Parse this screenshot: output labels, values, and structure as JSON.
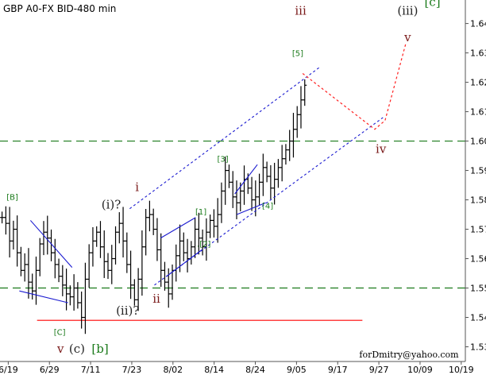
{
  "chart_data": {
    "type": "ohlc",
    "title": "GBP A0-FX BID-480 min",
    "watermark": "forDmitry@yahoo.com",
    "y_ticks": [
      1.53,
      1.54,
      1.55,
      1.56,
      1.57,
      1.58,
      1.59,
      1.6,
      1.61,
      1.62,
      1.63,
      1.64
    ],
    "ylim": [
      1.525,
      1.648
    ],
    "x_ticks": [
      "6/19",
      "6/29",
      "7/11",
      "7/23",
      "8/02",
      "8/14",
      "8/24",
      "9/05",
      "9/17",
      "9/27",
      "10/09",
      "10/19"
    ],
    "xlim": [
      0,
      11.3
    ],
    "colors": {
      "bars": "#000000",
      "wave_labels": "#222222",
      "sub_wave_labels": "#1a7a1a",
      "main_labels": "#7a1a1a",
      "channel": "#1a1ad0",
      "projection": "#ff2020",
      "levels": "#1a7a1a",
      "support": "#ff0000",
      "axis": "#555555"
    },
    "price_series": [
      1.574,
      1.572,
      1.566,
      1.57,
      1.562,
      1.556,
      1.558,
      1.552,
      1.549,
      1.556,
      1.565,
      1.569,
      1.567,
      1.562,
      1.558,
      1.554,
      1.551,
      1.548,
      1.547,
      1.55,
      1.545,
      1.54,
      1.553,
      1.562,
      1.566,
      1.569,
      1.564,
      1.559,
      1.556,
      1.56,
      1.569,
      1.572,
      1.566,
      1.558,
      1.551,
      1.546,
      1.553,
      1.564,
      1.574,
      1.575,
      1.57,
      1.563,
      1.556,
      1.552,
      1.548,
      1.556,
      1.561,
      1.566,
      1.562,
      1.56,
      1.564,
      1.57,
      1.567,
      1.564,
      1.569,
      1.573,
      1.571,
      1.575,
      1.583,
      1.59,
      1.586,
      1.581,
      1.579,
      1.583,
      1.587,
      1.584,
      1.58,
      1.581,
      1.586,
      1.591,
      1.588,
      1.584,
      1.587,
      1.591,
      1.594,
      1.597,
      1.6,
      1.604,
      1.609,
      1.614,
      1.619
    ],
    "horizontal_levels": [
      {
        "y": 1.6,
        "style": "dashed",
        "color": "levels"
      },
      {
        "y": 1.55,
        "style": "dashed",
        "color": "levels"
      },
      {
        "y": 1.539,
        "x_from": 0.9,
        "x_to": 8.8,
        "style": "solid",
        "color": "support"
      }
    ],
    "trend_lines": [
      {
        "points": [
          [
            0.74,
            1.573
          ],
          [
            1.75,
            1.557
          ]
        ],
        "style": "solid",
        "color": "channel"
      },
      {
        "points": [
          [
            0.47,
            1.549
          ],
          [
            1.65,
            1.545
          ]
        ],
        "style": "solid",
        "color": "channel"
      },
      {
        "points": [
          [
            3.9,
            1.567
          ],
          [
            4.75,
            1.574
          ]
        ],
        "style": "solid",
        "color": "channel"
      },
      {
        "points": [
          [
            4.05,
            1.554
          ],
          [
            4.9,
            1.563
          ]
        ],
        "style": "solid",
        "color": "channel"
      },
      {
        "points": [
          [
            5.7,
            1.582
          ],
          [
            6.25,
            1.592
          ]
        ],
        "style": "solid",
        "color": "channel"
      },
      {
        "points": [
          [
            5.75,
            1.575
          ],
          [
            6.45,
            1.579
          ]
        ],
        "style": "solid",
        "color": "channel"
      },
      {
        "points": [
          [
            3.15,
            1.577
          ],
          [
            7.75,
            1.625
          ]
        ],
        "style": "dashed",
        "color": "channel"
      },
      {
        "points": [
          [
            3.75,
            1.551
          ],
          [
            9.3,
            1.608
          ]
        ],
        "style": "dashed",
        "color": "channel"
      }
    ],
    "projection": {
      "points": [
        [
          7.35,
          1.623
        ],
        [
          9.1,
          1.604
        ],
        [
          9.35,
          1.607
        ],
        [
          9.85,
          1.633
        ]
      ],
      "color": "projection"
    },
    "wave_labels": [
      {
        "text": "[B]",
        "x": 0.3,
        "y": 1.58,
        "color": "sub_wave_labels",
        "size": "small"
      },
      {
        "text": "(i)?",
        "x": 2.7,
        "y": 1.577,
        "color": "wave_labels",
        "size": "large"
      },
      {
        "text": "i",
        "x": 3.33,
        "y": 1.583,
        "color": "main_labels",
        "size": "large"
      },
      {
        "text": "[1]",
        "x": 4.88,
        "y": 1.575,
        "color": "sub_wave_labels",
        "size": "small"
      },
      {
        "text": "[3]",
        "x": 5.41,
        "y": 1.593,
        "color": "sub_wave_labels",
        "size": "small"
      },
      {
        "text": "iii",
        "x": 7.3,
        "y": 1.643,
        "color": "main_labels",
        "size": "large"
      },
      {
        "text": "[5]",
        "x": 7.23,
        "y": 1.629,
        "color": "sub_wave_labels",
        "size": "small"
      },
      {
        "text": "(iii)",
        "x": 9.9,
        "y": 1.643,
        "color": "wave_labels",
        "size": "large"
      },
      {
        "text": "v",
        "x": 9.9,
        "y": 1.634,
        "color": "main_labels",
        "size": "large"
      },
      {
        "text": "[c]",
        "x": 10.5,
        "y": 1.646,
        "color": "sub_wave_labels",
        "size": "large"
      },
      {
        "text": ".[2]",
        "x": 4.95,
        "y": 1.564,
        "color": "sub_wave_labels",
        "size": "small"
      },
      {
        "text": "[4]",
        "x": 6.5,
        "y": 1.577,
        "color": "sub_wave_labels",
        "size": "small"
      },
      {
        "text": "iv",
        "x": 9.25,
        "y": 1.596,
        "color": "main_labels",
        "size": "large"
      },
      {
        "text": "ii",
        "x": 3.8,
        "y": 1.545,
        "color": "main_labels",
        "size": "large"
      },
      {
        "text": "(ii)?",
        "x": 3.1,
        "y": 1.541,
        "color": "wave_labels",
        "size": "large"
      },
      {
        "text": "[C]",
        "x": 1.45,
        "y": 1.534,
        "color": "sub_wave_labels",
        "size": "small"
      },
      {
        "text": "v",
        "x": 1.47,
        "y": 1.528,
        "color": "main_labels",
        "size": "large"
      },
      {
        "text": "(c)",
        "x": 1.87,
        "y": 1.528,
        "color": "wave_labels",
        "size": "large"
      },
      {
        "text": "[b]",
        "x": 2.43,
        "y": 1.528,
        "color": "sub_wave_labels",
        "size": "large"
      }
    ]
  }
}
